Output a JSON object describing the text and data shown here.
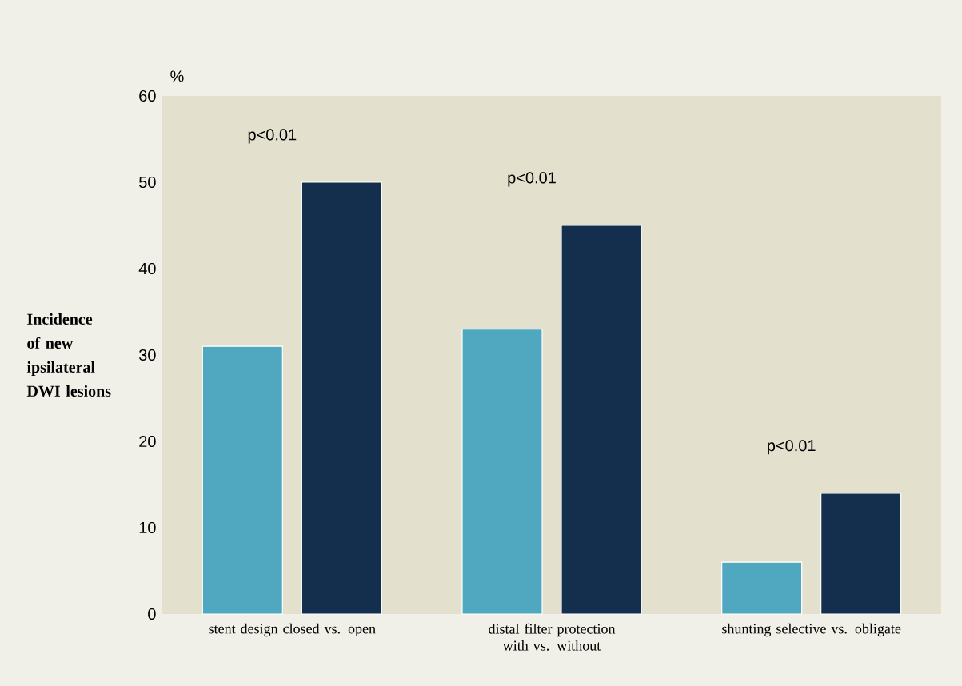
{
  "chart_data": {
    "type": "bar",
    "ylabel": "Incidence of new ipsilateral DWI lesions",
    "categories": [
      "stent design closed vs. open",
      "distal filter protection with vs. without",
      "shunting selective vs. obligate"
    ],
    "series": [
      {
        "color": "#4fa8c0",
        "values": [
          31,
          33,
          6
        ]
      },
      {
        "color": "#142f4e",
        "values": [
          50,
          45,
          14
        ]
      }
    ],
    "ylim": [
      0,
      60
    ],
    "yticks": [
      0,
      10,
      20,
      30,
      40,
      50,
      60
    ],
    "grid": false,
    "legend": false,
    "annotations": [
      "%",
      "p<0.01",
      "p<0.01",
      "p<0.01"
    ]
  }
}
